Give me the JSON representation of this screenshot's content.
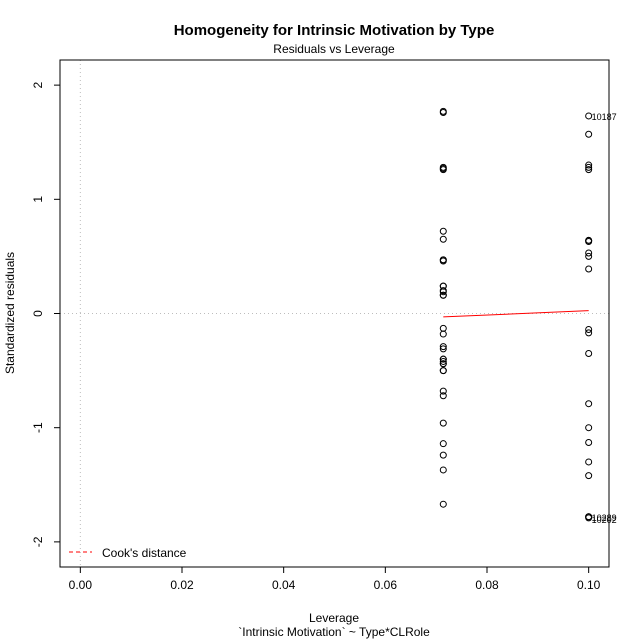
{
  "chart_data": {
    "type": "scatter",
    "title": "Homogeneity for Intrinsic Motivation by Type",
    "subtitle": "Residuals vs Leverage",
    "xlabel": "Leverage",
    "xlabel2": "`Intrinsic Motivation` ~ Type*CLRole",
    "ylabel": "Standardized residuals",
    "xlim": [
      -0.004,
      0.104
    ],
    "ylim": [
      -2.22,
      2.22
    ],
    "xticks": [
      0.0,
      0.02,
      0.04,
      0.06,
      0.08,
      0.1
    ],
    "xtick_labels": [
      "0.00",
      "0.02",
      "0.04",
      "0.06",
      "0.08",
      "0.10"
    ],
    "yticks": [
      -2,
      -1,
      0,
      1,
      2
    ],
    "ytick_labels": [
      "-2",
      "-1",
      "0",
      "1",
      "2"
    ],
    "reference_lines": {
      "x": 0,
      "y": 0
    },
    "point_marker": "open-circle",
    "series": [
      {
        "x": [
          0.0714,
          0.0714,
          0.0714,
          0.0714,
          0.0714,
          0.0714,
          0.0714,
          0.0714,
          0.0714,
          0.0714,
          0.0714,
          0.0714,
          0.0714,
          0.0714,
          0.0714,
          0.0714,
          0.0714,
          0.0714,
          0.0714,
          0.0714,
          0.0714,
          0.0714,
          0.0714,
          0.0714,
          0.0714,
          0.0714,
          0.0714,
          0.0714,
          0.0714,
          0.0714,
          0.0714,
          0.0714,
          0.0714,
          0.0714
        ],
        "y": [
          1.76,
          1.77,
          1.27,
          1.28,
          1.26,
          0.72,
          0.65,
          0.47,
          0.46,
          0.24,
          0.19,
          0.16,
          0.2,
          -0.13,
          -0.18,
          -0.29,
          -0.31,
          -0.4,
          -0.42,
          -0.44,
          -0.5,
          -0.68,
          -0.72,
          -0.96,
          -1.14,
          -1.24,
          -1.37,
          -1.67,
          0.47,
          0.24,
          0.16,
          -0.4,
          -0.44,
          -0.5
        ]
      },
      {
        "x": [
          0.1,
          0.1,
          0.1,
          0.1,
          0.1,
          0.1,
          0.1,
          0.1,
          0.1,
          0.1,
          0.1,
          0.1,
          0.1,
          0.1,
          0.1,
          0.1,
          0.1,
          0.1,
          0.1,
          0.1,
          0.1,
          0.1
        ],
        "y": [
          1.73,
          1.57,
          1.3,
          1.26,
          1.28,
          0.64,
          0.63,
          0.53,
          0.5,
          0.39,
          -0.14,
          -0.17,
          -0.35,
          -0.79,
          -1.0,
          -1.13,
          -1.3,
          -1.42,
          -1.78,
          -1.79,
          -1.78,
          0.64
        ]
      }
    ],
    "point_labels": [
      {
        "text": "10187",
        "x": 0.1,
        "y": 1.73
      },
      {
        "text": "10289",
        "x": 0.1,
        "y": -1.78
      },
      {
        "text": "10202",
        "x": 0.1,
        "y": -1.8
      }
    ],
    "smooth_line": {
      "x": [
        0.0714,
        0.1
      ],
      "y": [
        -0.03,
        0.025
      ],
      "color": "#ff0000"
    },
    "legend": {
      "label": "Cook's distance",
      "placement": "bottom-left",
      "color": "#ff0000",
      "style": "dashed"
    }
  }
}
